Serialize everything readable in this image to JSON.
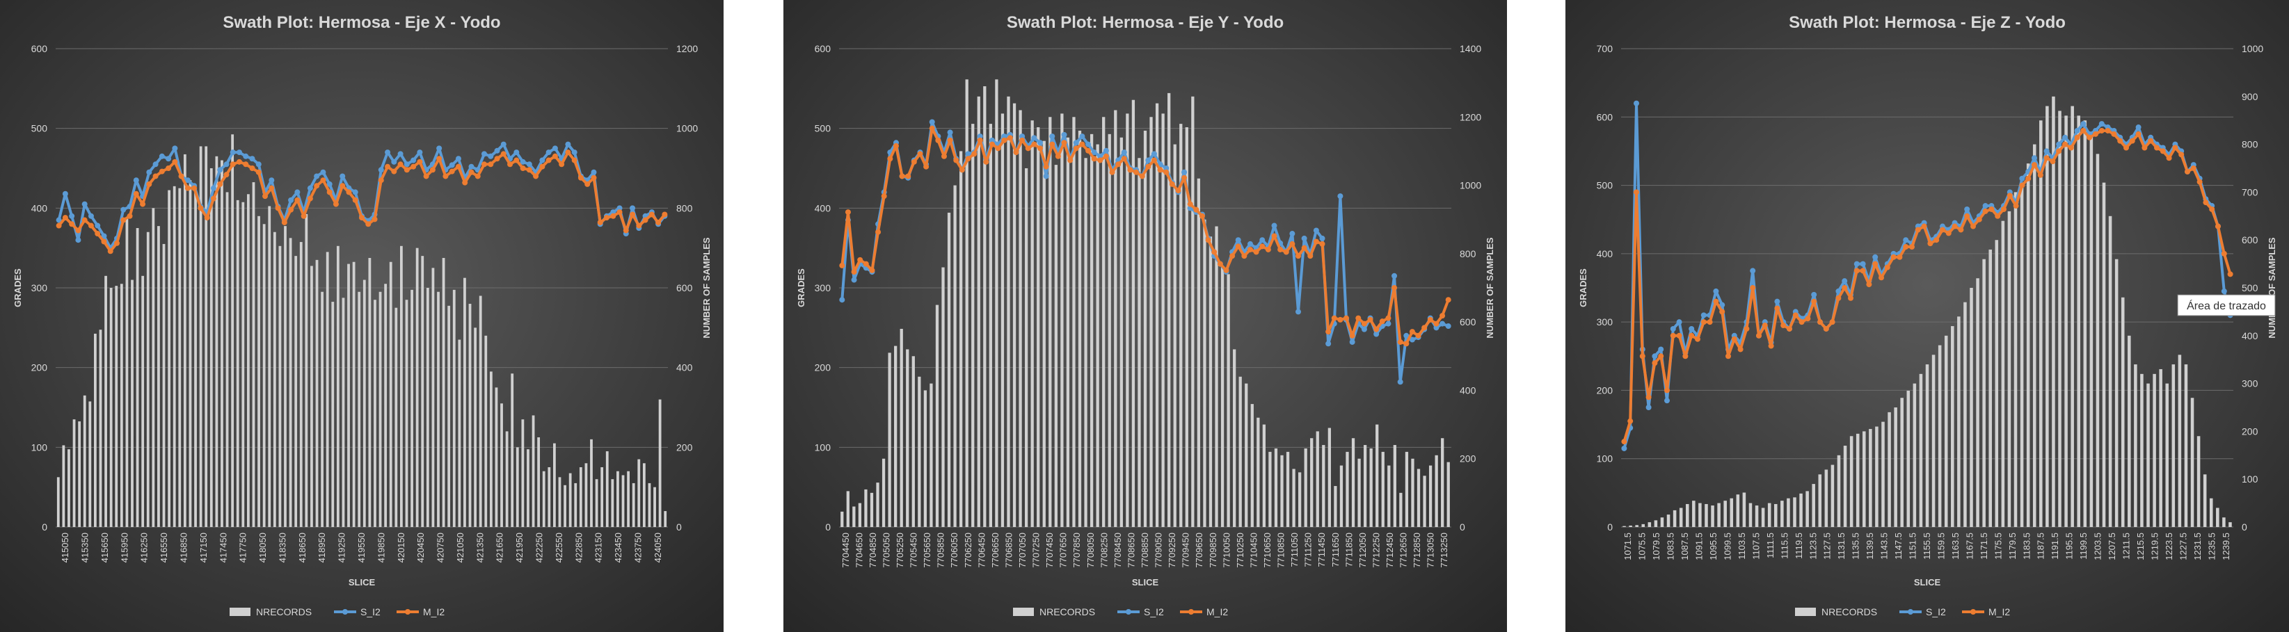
{
  "colors": {
    "bg_inner": "#5a5a5a",
    "bg_outer": "#262626",
    "nrecords": "#d0d0d0",
    "s_i2": "#5b9bd5",
    "m_i2": "#ed7d31",
    "text": "#d9d9d9",
    "grid": "#6c6c6c"
  },
  "chart_data": [
    {
      "type": "bar+line",
      "title": "Swath Plot: Hermosa - Eje X - Yodo",
      "xlabel": "SLICE",
      "ylabel": "GRADES",
      "y2label": "NUMBER OF SAMPLES",
      "ylim": [
        0,
        600
      ],
      "y2lim": [
        0,
        1200
      ],
      "yticks": [
        0,
        100,
        200,
        300,
        400,
        500,
        600
      ],
      "y2ticks": [
        0,
        200,
        400,
        600,
        800,
        1000,
        1200
      ],
      "legend": "bottom",
      "legend_labels": [
        "NRECORDS",
        "S_I2",
        "M_I2"
      ],
      "x_tick_labels": [
        "415050",
        "415350",
        "415650",
        "415950",
        "416250",
        "416550",
        "416850",
        "417150",
        "417450",
        "417750",
        "418050",
        "418350",
        "418650",
        "418950",
        "419250",
        "419550",
        "419850",
        "420150",
        "420450",
        "420750",
        "421050",
        "421350",
        "421650",
        "421950",
        "422250",
        "422550",
        "422850",
        "423150",
        "423450",
        "423750",
        "424050"
      ],
      "nrecords": [
        125,
        205,
        195,
        270,
        265,
        330,
        315,
        485,
        495,
        630,
        600,
        605,
        610,
        775,
        620,
        750,
        630,
        740,
        800,
        755,
        710,
        845,
        855,
        850,
        935,
        870,
        850,
        955,
        955,
        900,
        930,
        920,
        840,
        985,
        820,
        815,
        835,
        865,
        780,
        760,
        805,
        740,
        705,
        755,
        725,
        680,
        715,
        785,
        655,
        670,
        590,
        690,
        565,
        705,
        575,
        660,
        665,
        590,
        620,
        675,
        570,
        590,
        610,
        665,
        550,
        705,
        570,
        595,
        700,
        680,
        600,
        650,
        590,
        675,
        555,
        595,
        470,
        625,
        560,
        500,
        580,
        480,
        390,
        350,
        310,
        240,
        385,
        200,
        270,
        195,
        280,
        225,
        140,
        150,
        210,
        125,
        105,
        135,
        110,
        150,
        160,
        220,
        120,
        150,
        190,
        120,
        140,
        130,
        140,
        110,
        170,
        160,
        110,
        100,
        320,
        40
      ],
      "s_i2": [
        385,
        418,
        390,
        360,
        405,
        390,
        378,
        365,
        350,
        362,
        398,
        402,
        435,
        415,
        445,
        455,
        465,
        462,
        475,
        440,
        435,
        428,
        402,
        395,
        425,
        448,
        455,
        470,
        470,
        465,
        462,
        455,
        420,
        435,
        402,
        385,
        410,
        420,
        395,
        425,
        440,
        445,
        430,
        410,
        440,
        425,
        420,
        390,
        384,
        392,
        448,
        470,
        458,
        468,
        455,
        460,
        470,
        448,
        455,
        475,
        448,
        454,
        462,
        438,
        452,
        448,
        468,
        465,
        472,
        480,
        462,
        470,
        458,
        455,
        445,
        460,
        470,
        475,
        462,
        480,
        470,
        440,
        435,
        445,
        380,
        390,
        395,
        400,
        368,
        400,
        375,
        390,
        395,
        380,
        390
      ],
      "m_i2": [
        378,
        388,
        380,
        372,
        385,
        378,
        368,
        358,
        346,
        356,
        385,
        390,
        418,
        405,
        430,
        440,
        446,
        450,
        458,
        440,
        425,
        425,
        400,
        388,
        412,
        430,
        442,
        455,
        458,
        455,
        450,
        445,
        415,
        425,
        400,
        382,
        398,
        410,
        390,
        412,
        428,
        435,
        420,
        405,
        428,
        420,
        410,
        388,
        380,
        386,
        435,
        452,
        446,
        455,
        448,
        452,
        458,
        440,
        448,
        462,
        440,
        446,
        452,
        432,
        445,
        440,
        455,
        455,
        462,
        468,
        455,
        460,
        450,
        448,
        440,
        452,
        460,
        465,
        455,
        470,
        460,
        438,
        430,
        438,
        382,
        388,
        390,
        395,
        372,
        392,
        378,
        385,
        392,
        382,
        392
      ]
    },
    {
      "type": "bar+line",
      "title": "Swath Plot: Hermosa - Eje Y - Yodo",
      "xlabel": "SLICE",
      "ylabel": "GRADES",
      "y2label": "NUMBER OF SAMPLES",
      "ylim": [
        0,
        600
      ],
      "y2lim": [
        0,
        1400
      ],
      "yticks": [
        0,
        100,
        200,
        300,
        400,
        500,
        600
      ],
      "y2ticks": [
        0,
        200,
        400,
        600,
        800,
        1000,
        1200,
        1400
      ],
      "legend": "bottom",
      "legend_labels": [
        "NRECORDS",
        "S_I2",
        "M_I2"
      ],
      "x_tick_labels": [
        "7704450",
        "7704650",
        "7704850",
        "7705050",
        "7705250",
        "7705450",
        "7705650",
        "7705850",
        "7706050",
        "7706250",
        "7706450",
        "7706650",
        "7706850",
        "7707050",
        "7707250",
        "7707450",
        "7707650",
        "7707850",
        "7708050",
        "7708250",
        "7708450",
        "7708650",
        "7708850",
        "7709050",
        "7709250",
        "7709450",
        "7709650",
        "7709850",
        "7710050",
        "7710250",
        "7710450",
        "7710650",
        "7710850",
        "7711050",
        "7711250",
        "7711450",
        "7711650",
        "7711850",
        "7712050",
        "7712250",
        "7712450",
        "7712650",
        "7712850",
        "7713050",
        "7713250"
      ],
      "nrecords": [
        45,
        105,
        60,
        70,
        110,
        100,
        130,
        200,
        510,
        530,
        580,
        520,
        500,
        440,
        400,
        420,
        650,
        760,
        920,
        1000,
        1100,
        1310,
        1180,
        1260,
        1290,
        1180,
        1310,
        1210,
        1260,
        1240,
        1220,
        1050,
        1190,
        1170,
        1130,
        1200,
        1060,
        1210,
        1140,
        1200,
        1160,
        1080,
        1150,
        1120,
        1200,
        1150,
        1220,
        1140,
        1210,
        1250,
        1080,
        1160,
        1200,
        1240,
        1210,
        1270,
        1120,
        1180,
        1170,
        1260,
        1020,
        900,
        850,
        880,
        760,
        740,
        520,
        440,
        420,
        360,
        320,
        300,
        220,
        230,
        210,
        220,
        170,
        160,
        230,
        260,
        280,
        240,
        290,
        120,
        180,
        220,
        260,
        200,
        240,
        230,
        300,
        220,
        180,
        240,
        100,
        220,
        200,
        170,
        150,
        180,
        210,
        260,
        190
      ],
      "s_i2": [
        285,
        385,
        310,
        330,
        325,
        320,
        380,
        420,
        470,
        482,
        440,
        438,
        460,
        470,
        455,
        508,
        490,
        470,
        495,
        462,
        448,
        468,
        470,
        490,
        462,
        485,
        480,
        490,
        492,
        470,
        490,
        478,
        488,
        482,
        440,
        490,
        470,
        492,
        462,
        482,
        490,
        480,
        470,
        465,
        472,
        448,
        460,
        470,
        450,
        448,
        440,
        460,
        468,
        455,
        450,
        432,
        420,
        445,
        400,
        395,
        392,
        362,
        340,
        330,
        320,
        345,
        360,
        345,
        355,
        350,
        360,
        352,
        378,
        356,
        345,
        368,
        270,
        362,
        342,
        372,
        362,
        230,
        255,
        415,
        260,
        232,
        255,
        248,
        262,
        242,
        252,
        255,
        315,
        182,
        240,
        235,
        238,
        248,
        262,
        250,
        255,
        252
      ],
      "m_i2": [
        328,
        395,
        320,
        335,
        330,
        322,
        370,
        415,
        462,
        478,
        440,
        440,
        458,
        468,
        452,
        500,
        485,
        465,
        485,
        460,
        448,
        462,
        468,
        485,
        458,
        480,
        475,
        485,
        488,
        470,
        485,
        475,
        480,
        475,
        452,
        480,
        465,
        482,
        460,
        475,
        480,
        472,
        462,
        460,
        465,
        445,
        455,
        462,
        448,
        445,
        440,
        452,
        460,
        448,
        445,
        430,
        422,
        438,
        405,
        398,
        390,
        360,
        345,
        330,
        322,
        340,
        352,
        340,
        348,
        345,
        352,
        348,
        365,
        348,
        345,
        355,
        340,
        350,
        340,
        358,
        355,
        245,
        262,
        260,
        262,
        240,
        262,
        255,
        260,
        248,
        258,
        262,
        300,
        232,
        230,
        245,
        240,
        250,
        260,
        255,
        265,
        285
      ]
    },
    {
      "type": "bar+line",
      "title": "Swath Plot: Hermosa - Eje Z - Yodo",
      "xlabel": "SLICE",
      "ylabel": "GRADES",
      "y2label": "NUMBER OF SAMPLES",
      "ylim": [
        0,
        700
      ],
      "y2lim": [
        0,
        1000
      ],
      "yticks": [
        0,
        100,
        200,
        300,
        400,
        500,
        600,
        700
      ],
      "y2ticks": [
        0,
        100,
        200,
        300,
        400,
        500,
        600,
        700,
        800,
        900,
        1000
      ],
      "legend": "bottom",
      "legend_labels": [
        "NRECORDS",
        "S_I2",
        "M_I2"
      ],
      "tooltip": "Área de trazado",
      "x_tick_labels": [
        "1071.5",
        "1075.5",
        "1079.5",
        "1083.5",
        "1087.5",
        "1091.5",
        "1095.5",
        "1099.5",
        "1103.5",
        "1107.5",
        "1111.5",
        "1115.5",
        "1119.5",
        "1123.5",
        "1127.5",
        "1131.5",
        "1135.5",
        "1139.5",
        "1143.5",
        "1147.5",
        "1151.5",
        "1155.5",
        "1159.5",
        "1163.5",
        "1167.5",
        "1171.5",
        "1175.5",
        "1179.5",
        "1183.5",
        "1187.5",
        "1191.5",
        "1195.5",
        "1199.5",
        "1203.5",
        "1207.5",
        "1211.5",
        "1215.5",
        "1219.5",
        "1223.5",
        "1227.5",
        "1231.5",
        "1235.5",
        "1239.5"
      ],
      "nrecords": [
        2,
        3,
        4,
        6,
        10,
        14,
        20,
        26,
        35,
        40,
        48,
        55,
        50,
        48,
        45,
        50,
        55,
        60,
        68,
        72,
        50,
        45,
        40,
        50,
        48,
        55,
        60,
        62,
        70,
        75,
        90,
        110,
        120,
        130,
        150,
        170,
        190,
        195,
        200,
        205,
        210,
        220,
        240,
        250,
        270,
        285,
        300,
        320,
        340,
        360,
        380,
        400,
        420,
        440,
        470,
        500,
        520,
        560,
        580,
        600,
        640,
        660,
        700,
        720,
        760,
        800,
        850,
        880,
        900,
        870,
        860,
        880,
        860,
        850,
        820,
        780,
        720,
        650,
        560,
        480,
        400,
        340,
        320,
        300,
        320,
        330,
        300,
        340,
        360,
        340,
        270,
        190,
        110,
        60,
        40,
        20,
        10
      ],
      "s_i2": [
        115,
        145,
        620,
        260,
        175,
        250,
        260,
        185,
        290,
        300,
        255,
        290,
        280,
        310,
        310,
        345,
        325,
        260,
        280,
        270,
        300,
        375,
        280,
        300,
        270,
        330,
        300,
        290,
        315,
        305,
        310,
        340,
        300,
        290,
        300,
        345,
        360,
        340,
        385,
        385,
        360,
        395,
        370,
        385,
        400,
        400,
        420,
        415,
        440,
        445,
        420,
        425,
        440,
        435,
        445,
        440,
        465,
        445,
        455,
        470,
        470,
        460,
        470,
        490,
        475,
        510,
        520,
        540,
        520,
        550,
        540,
        560,
        570,
        560,
        580,
        590,
        575,
        580,
        590,
        585,
        580,
        570,
        560,
        570,
        585,
        560,
        570,
        560,
        555,
        545,
        560,
        550,
        520,
        530,
        510,
        480,
        470,
        440,
        345,
        310
      ],
      "m_i2": [
        125,
        155,
        490,
        250,
        190,
        240,
        250,
        200,
        280,
        280,
        250,
        280,
        275,
        300,
        300,
        330,
        315,
        250,
        275,
        260,
        290,
        350,
        280,
        295,
        265,
        320,
        295,
        290,
        310,
        300,
        305,
        330,
        300,
        290,
        300,
        335,
        350,
        335,
        375,
        375,
        355,
        385,
        365,
        380,
        395,
        395,
        410,
        410,
        435,
        440,
        415,
        420,
        435,
        430,
        440,
        435,
        455,
        440,
        450,
        462,
        465,
        455,
        465,
        485,
        470,
        500,
        510,
        530,
        515,
        540,
        535,
        550,
        560,
        555,
        570,
        580,
        570,
        575,
        580,
        580,
        575,
        565,
        555,
        565,
        575,
        555,
        565,
        555,
        550,
        540,
        555,
        545,
        520,
        525,
        505,
        475,
        465,
        440,
        400,
        370
      ]
    }
  ]
}
